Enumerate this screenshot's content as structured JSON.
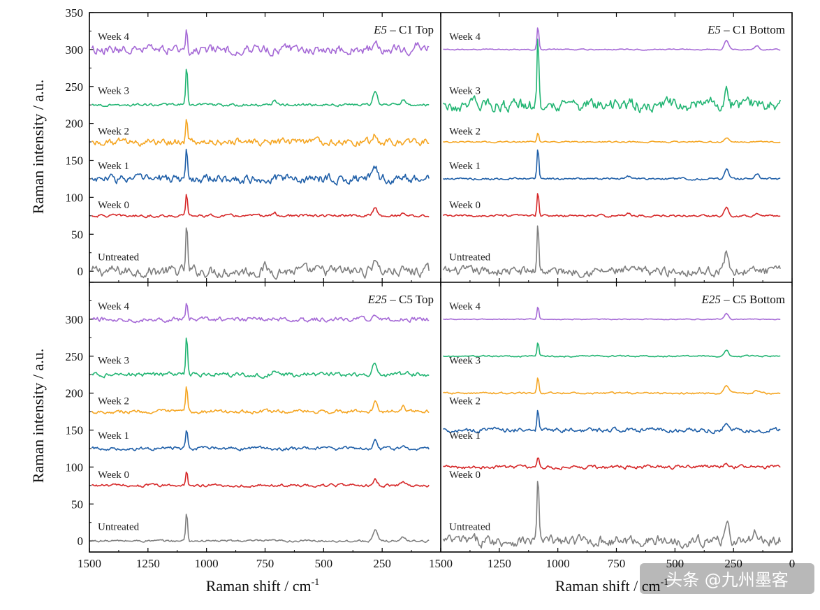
{
  "chart_data": {
    "type": "line",
    "figure": {
      "xlabel": "Raman shift / cm",
      "xlabel_superscript": "-1",
      "ylabel": "Raman intensity / a.u.",
      "xlim": [
        1500,
        0
      ],
      "ylim": [
        -15,
        350
      ],
      "x_ticks": [
        1500,
        1250,
        1000,
        750,
        500,
        250,
        0
      ],
      "y_ticks": [
        0,
        50,
        100,
        150,
        200,
        250,
        300,
        350
      ],
      "x_tick_labels_left": [
        "1500",
        "1250",
        "1000",
        "750",
        "500",
        "250"
      ],
      "x_tick_labels_right": [
        "1500",
        "1250",
        "1000",
        "750",
        "500",
        "250",
        "0"
      ],
      "y_tick_labels": [
        "0",
        "50",
        "100",
        "150",
        "200",
        "250",
        "300",
        "350"
      ],
      "grid": false
    },
    "colors": {
      "Untreated": "#7f7f7f",
      "Week 0": "#d62728",
      "Week 1": "#1f5fa8",
      "Week 2": "#f5a623",
      "Week 3": "#22b573",
      "Week 4": "#a569d6"
    },
    "panels": [
      {
        "title_italic": "E5",
        "title_rest": " – C1 Top",
        "series": [
          {
            "name": "Untreated",
            "offset": 0,
            "peaks": [
              [
                1085,
                62
              ],
              [
                280,
                20
              ],
              [
                750,
                5
              ]
            ],
            "noise": 6
          },
          {
            "name": "Week 0",
            "offset": 75,
            "peaks": [
              [
                1085,
                30
              ],
              [
                280,
                12
              ],
              [
                710,
                4
              ],
              [
                160,
                4
              ]
            ],
            "noise": 1.5
          },
          {
            "name": "Week 1",
            "offset": 125,
            "peaks": [
              [
                1085,
                38
              ],
              [
                280,
                15
              ]
            ],
            "noise": 5
          },
          {
            "name": "Week 2",
            "offset": 175,
            "peaks": [
              [
                1085,
                28
              ],
              [
                280,
                10
              ]
            ],
            "noise": 4
          },
          {
            "name": "Week 3",
            "offset": 225,
            "peaks": [
              [
                1085,
                55
              ],
              [
                280,
                20
              ],
              [
                710,
                6
              ],
              [
                160,
                8
              ]
            ],
            "noise": 1.5
          },
          {
            "name": "Week 4",
            "offset": 300,
            "peaks": [
              [
                1085,
                35
              ],
              [
                280,
                15
              ],
              [
                100,
                10
              ]
            ],
            "noise": 5
          }
        ],
        "label_y": {
          "Untreated": 15,
          "Week 0": 85,
          "Week 1": 138,
          "Week 2": 185,
          "Week 3": 240,
          "Week 4": 313
        }
      },
      {
        "title_italic": "E5",
        "title_rest": " – C1 Bottom",
        "series": [
          {
            "name": "Untreated",
            "offset": 0,
            "peaks": [
              [
                1085,
                68
              ],
              [
                280,
                25
              ]
            ],
            "noise": 5
          },
          {
            "name": "Week 0",
            "offset": 75,
            "peaks": [
              [
                1085,
                33
              ],
              [
                280,
                12
              ],
              [
                700,
                4
              ],
              [
                150,
                4
              ]
            ],
            "noise": 1.2
          },
          {
            "name": "Week 1",
            "offset": 125,
            "peaks": [
              [
                1085,
                42
              ],
              [
                280,
                14
              ],
              [
                700,
                4
              ],
              [
                150,
                7
              ]
            ],
            "noise": 1.2
          },
          {
            "name": "Week 2",
            "offset": 175,
            "peaks": [
              [
                1085,
                12
              ],
              [
                280,
                5
              ]
            ],
            "noise": 0.8
          },
          {
            "name": "Week 3",
            "offset": 225,
            "peaks": [
              [
                1085,
                95
              ],
              [
                280,
                25
              ]
            ],
            "noise": 7
          },
          {
            "name": "Week 4",
            "offset": 300,
            "peaks": [
              [
                1085,
                32
              ],
              [
                280,
                12
              ],
              [
                150,
                5
              ]
            ],
            "noise": 0.6
          }
        ],
        "label_y": {
          "Untreated": 15,
          "Week 0": 85,
          "Week 1": 138,
          "Week 2": 185,
          "Week 3": 240,
          "Week 4": 313
        }
      },
      {
        "title_italic": "E25",
        "title_rest": " – C5 Top",
        "series": [
          {
            "name": "Untreated",
            "offset": 0,
            "peaks": [
              [
                1085,
                40
              ],
              [
                280,
                14
              ],
              [
                160,
                5
              ]
            ],
            "noise": 1.2
          },
          {
            "name": "Week 0",
            "offset": 75,
            "peaks": [
              [
                1085,
                20
              ],
              [
                280,
                8
              ],
              [
                160,
                4
              ]
            ],
            "noise": 1.6
          },
          {
            "name": "Week 1",
            "offset": 125,
            "peaks": [
              [
                1085,
                25
              ],
              [
                280,
                10
              ],
              [
                160,
                5
              ]
            ],
            "noise": 2
          },
          {
            "name": "Week 2",
            "offset": 175,
            "peaks": [
              [
                1085,
                35
              ],
              [
                280,
                12
              ],
              [
                160,
                6
              ]
            ],
            "noise": 2
          },
          {
            "name": "Week 3",
            "offset": 225,
            "peaks": [
              [
                1085,
                55
              ],
              [
                280,
                18
              ],
              [
                710,
                6
              ]
            ],
            "noise": 2.5
          },
          {
            "name": "Week 4",
            "offset": 300,
            "peaks": [
              [
                1085,
                22
              ],
              [
                280,
                8
              ]
            ],
            "noise": 2.5
          }
        ],
        "label_y": {
          "Untreated": 15,
          "Week 0": 85,
          "Week 1": 138,
          "Week 2": 185,
          "Week 3": 240,
          "Week 4": 313
        }
      },
      {
        "title_italic": "E25",
        "title_rest": " – C5 Bottom",
        "series": [
          {
            "name": "Untreated",
            "offset": 0,
            "peaks": [
              [
                1085,
                92
              ],
              [
                280,
                30
              ],
              [
                150,
                12
              ]
            ],
            "noise": 6
          },
          {
            "name": "Week 0",
            "offset": 100,
            "peaks": [
              [
                1085,
                14
              ],
              [
                280,
                6
              ]
            ],
            "noise": 2
          },
          {
            "name": "Week 1",
            "offset": 150,
            "peaks": [
              [
                1085,
                30
              ],
              [
                280,
                10
              ]
            ],
            "noise": 2.5
          },
          {
            "name": "Week 2",
            "offset": 200,
            "peaks": [
              [
                1085,
                22
              ],
              [
                280,
                10
              ],
              [
                150,
                4
              ]
            ],
            "noise": 1
          },
          {
            "name": "Week 3",
            "offset": 250,
            "peaks": [
              [
                1085,
                20
              ],
              [
                280,
                8
              ]
            ],
            "noise": 0.8
          },
          {
            "name": "Week 4",
            "offset": 300,
            "peaks": [
              [
                1085,
                18
              ],
              [
                280,
                8
              ]
            ],
            "noise": 0.5
          }
        ],
        "label_y": {
          "Untreated": 15,
          "Week 0": 85,
          "Week 1": 138,
          "Week 2": 185,
          "Week 3": 240,
          "Week 4": 313
        }
      }
    ]
  },
  "watermark": {
    "text": "头条 @九州墨客"
  }
}
